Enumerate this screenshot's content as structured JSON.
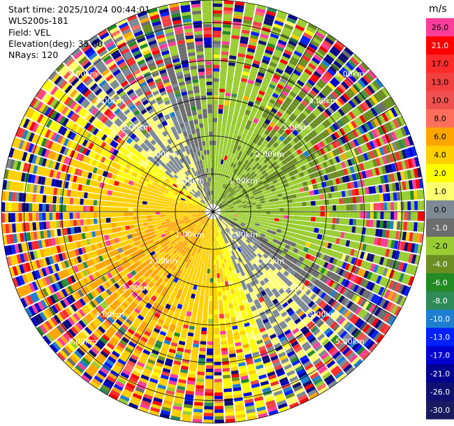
{
  "header": {
    "start_time": "Start time: 2025/10/24 00:44:01",
    "instrument": "WLS200s-181",
    "field": "Field: VEL",
    "elevation": "Elevation(deg): 35.00",
    "nrays": "NRays: 120"
  },
  "chart_data": {
    "type": "heatmap",
    "projection": "polar PPI",
    "field": "VEL",
    "elevation_deg": 35.0,
    "n_rays": 120,
    "range_rings_km": [
      1.0,
      2.0,
      3.0,
      4.0,
      5.0
    ],
    "ring_labels": [
      "1.00km",
      "2.00km",
      "3.00km",
      "4.00km",
      "5.00km"
    ],
    "max_range_km": 5.6,
    "colorbar": {
      "unit": "m/s",
      "ticks": [
        "26.0",
        "21.0",
        "17.0",
        "13.0",
        "10.0",
        "8.0",
        "6.0",
        "4.0",
        "2.0",
        "1.0",
        "0.0",
        "-1.0",
        "-2.0",
        "-4.0",
        "-6.0",
        "-8.0",
        "-10.0",
        "-13.0",
        "-17.0",
        "-21.0",
        "-26.0",
        "-30.0"
      ],
      "colors": [
        "#ff3d9a",
        "#ff0000",
        "#ff2a2a",
        "#f23f3f",
        "#f05050",
        "#ff6f5c",
        "#ffa500",
        "#ffd000",
        "#ffff00",
        "#ffff70",
        "#7d8a94",
        "#6d6d6d",
        "#9acd32",
        "#6b8e23",
        "#228b22",
        "#2e8b57",
        "#1e7fd0",
        "#0020ff",
        "#0000d0",
        "#000090",
        "#101070",
        "#1a1a60"
      ]
    },
    "dominant_pattern": {
      "near_range_west_south": "yellow/orange (positive velocity, 2 to 6 m/s)",
      "near_range_north_east": "green (negative velocity, -2 to -6 m/s)",
      "zero_band": "gray (~0 m/s) along NW and SE",
      "far_range": "noisy mixed colors"
    }
  }
}
